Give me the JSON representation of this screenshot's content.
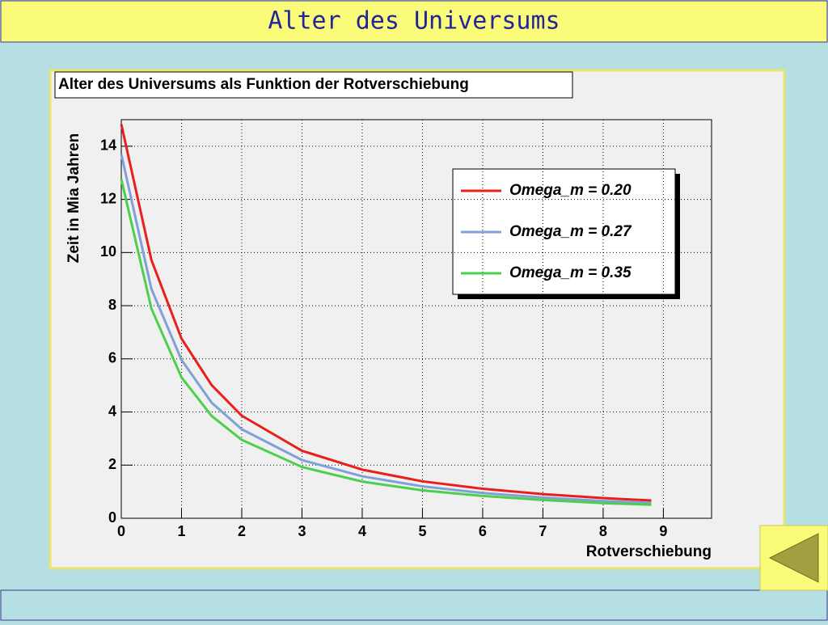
{
  "header": {
    "title": "Alter des Universums"
  },
  "chart_data": {
    "type": "line",
    "title": "Alter des Universums als Funktion der Rotverschiebung",
    "x_label": "Rotverschiebung",
    "y_label": "Zeit in Mia Jahren",
    "x": [
      0,
      0.5,
      1,
      1.5,
      2,
      3,
      4,
      5,
      6,
      7,
      8,
      8.8
    ],
    "series": [
      {
        "name": "Omega_m = 0.20",
        "color": "#e8201c",
        "values": [
          14.83,
          9.72,
          6.76,
          5.01,
          3.86,
          2.54,
          1.83,
          1.39,
          1.11,
          0.91,
          0.76,
          0.67
        ]
      },
      {
        "name": "Omega_m = 0.27",
        "color": "#7fa0d8",
        "values": [
          13.7,
          8.63,
          5.96,
          4.35,
          3.35,
          2.19,
          1.58,
          1.2,
          0.95,
          0.78,
          0.65,
          0.58
        ]
      },
      {
        "name": "Omega_m = 0.35",
        "color": "#4ccf4c",
        "values": [
          12.76,
          7.89,
          5.3,
          3.85,
          2.95,
          1.93,
          1.38,
          1.05,
          0.84,
          0.69,
          0.57,
          0.51
        ]
      }
    ],
    "xlim": [
      0,
      9.8
    ],
    "ylim": [
      0,
      15
    ],
    "xticks": [
      0,
      1,
      2,
      3,
      4,
      5,
      6,
      7,
      8,
      9
    ],
    "yticks": [
      0,
      2,
      4,
      6,
      8,
      10,
      12,
      14
    ],
    "grid": true
  }
}
